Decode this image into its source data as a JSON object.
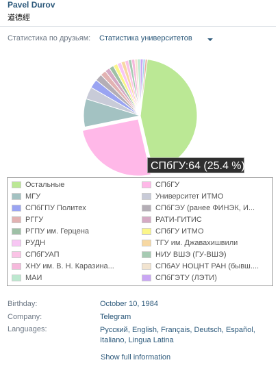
{
  "profile": {
    "name": "Pavel Durov",
    "subname": "道德經"
  },
  "stats": {
    "label": "Статистика по друзьям:",
    "selected": "Статистика университетов"
  },
  "tooltip": "СПбГУ:64 (25.4 %)",
  "chart_data": {
    "type": "pie",
    "slices": [
      {
        "name": "Остальные",
        "percent": 46.4,
        "color": "#bbe895"
      },
      {
        "name": "СПбГУ",
        "percent": 25.4,
        "color": "#ffb8e8"
      },
      {
        "name": "МГУ",
        "percent": 8.0,
        "color": "#a3c2c2"
      },
      {
        "name": "Университет ИТМО",
        "percent": 3.5,
        "color": "#c8cbd8"
      },
      {
        "name": "СПбГПУ Политех",
        "percent": 2.5,
        "color": "#9aa4f2"
      },
      {
        "name": "СПбГЭУ (ранее ФИНЭК, И...",
        "percent": 2.0,
        "color": "#b4aeb6"
      },
      {
        "name": "РГГУ",
        "percent": 1.6,
        "color": "#e2b2b2"
      },
      {
        "name": "РАТИ-ГИТИС",
        "percent": 1.4,
        "color": "#d5aac4"
      },
      {
        "name": "РГПУ им. Герцена",
        "percent": 1.3,
        "color": "#9ec0a6"
      },
      {
        "name": "СПбГУ ИТМО",
        "percent": 1.2,
        "color": "#fbf68a"
      },
      {
        "name": "РУДН",
        "percent": 1.2,
        "color": "#f8c6f4"
      },
      {
        "name": "ТГУ им. Джавахишвили",
        "percent": 1.1,
        "color": "#f7d8a2"
      },
      {
        "name": "СПбГУАП",
        "percent": 1.0,
        "color": "#fbc3e6"
      },
      {
        "name": "НИУ ВШЭ (ГУ-ВШЭ)",
        "percent": 0.9,
        "color": "#a6cab2"
      },
      {
        "name": "ХНУ им. В. Н. Каразина...",
        "percent": 0.9,
        "color": "#f6b9dc"
      },
      {
        "name": "СПбАУ НОЦНТ РАН (бывш....",
        "percent": 0.8,
        "color": "#f2e4d0"
      },
      {
        "name": "МАИ",
        "percent": 0.8,
        "color": "#bce8cf"
      },
      {
        "name": "СПбГЭТУ (ЛЭТИ)",
        "percent": 0.8,
        "color": "#c9a6f4"
      },
      {
        "name": "",
        "percent": 0.6,
        "color": "#9dd3ea"
      },
      {
        "name": "",
        "percent": 0.6,
        "color": "#e8b4a0"
      }
    ]
  },
  "legend": [
    {
      "label": "Остальные",
      "color": "#bbe895"
    },
    {
      "label": "СПбГУ",
      "color": "#ffb8e8"
    },
    {
      "label": "МГУ",
      "color": "#a3c2c2"
    },
    {
      "label": "Университет ИТМО",
      "color": "#c8cbd8"
    },
    {
      "label": "СПбГПУ Политех",
      "color": "#9aa4f2"
    },
    {
      "label": "СПбГЭУ (ранее ФИНЭК, И...",
      "color": "#b4aeb6"
    },
    {
      "label": "РГГУ",
      "color": "#e2b2b2"
    },
    {
      "label": "РАТИ-ГИТИС",
      "color": "#d5aac4"
    },
    {
      "label": "РГПУ им. Герцена",
      "color": "#9ec0a6"
    },
    {
      "label": "СПбГУ ИТМО",
      "color": "#fbf68a"
    },
    {
      "label": "РУДН",
      "color": "#f8c6f4"
    },
    {
      "label": "ТГУ им. Джавахишвили",
      "color": "#f7d8a2"
    },
    {
      "label": "СПбГУАП",
      "color": "#fbc3e6"
    },
    {
      "label": "НИУ ВШЭ (ГУ-ВШЭ)",
      "color": "#a6cab2"
    },
    {
      "label": "ХНУ им. В. Н. Каразина...",
      "color": "#f6b9dc"
    },
    {
      "label": "СПбАУ НОЦНТ РАН (бывш....",
      "color": "#f2e4d0"
    },
    {
      "label": "МАИ",
      "color": "#bce8cf"
    },
    {
      "label": "СПбГЭТУ (ЛЭТИ)",
      "color": "#c9a6f4"
    }
  ],
  "info": {
    "birthday_label": "Birthday:",
    "birthday_day": "October 10",
    "birthday_sep": ", ",
    "birthday_year": "1984",
    "company_label": "Company:",
    "company": "Telegram",
    "languages_label": "Languages:",
    "languages": [
      "Русский",
      "English",
      "Français",
      "Deutsch",
      "Español",
      "Italiano",
      "Lingua Latina"
    ]
  },
  "show_full": "Show full information"
}
